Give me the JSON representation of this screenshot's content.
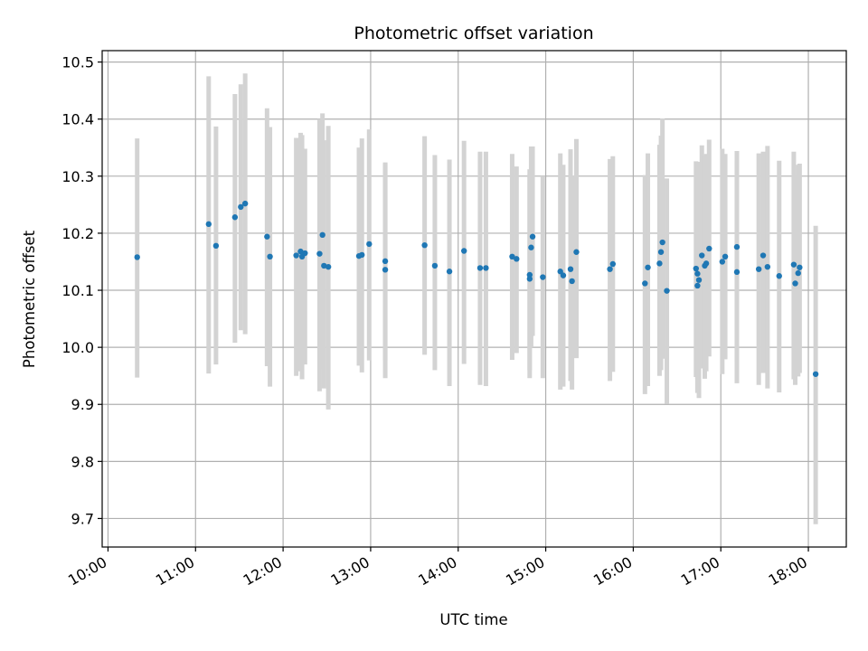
{
  "chart_data": {
    "type": "scatter",
    "title": "Photometric offset variation",
    "xlabel": "UTC time",
    "ylabel": "Photometric offset",
    "xlim": [
      "09:56",
      "18:26"
    ],
    "ylim": [
      9.65,
      10.52
    ],
    "x_ticks": [
      "10:00",
      "11:00",
      "12:00",
      "13:00",
      "14:00",
      "15:00",
      "16:00",
      "17:00",
      "18:00"
    ],
    "y_ticks": [
      9.7,
      9.8,
      9.9,
      10.0,
      10.1,
      10.2,
      10.3,
      10.4,
      10.5
    ],
    "y_tick_labels": [
      "9.7",
      "9.8",
      "9.9",
      "10.0",
      "10.1",
      "10.2",
      "10.3",
      "10.4",
      "10.5"
    ],
    "grid": true,
    "legend": "none",
    "colors": {
      "point": "#1f77b4",
      "errorbar": "#d3d3d3",
      "grid": "#b0b0b0"
    },
    "series": [
      {
        "x": [
          "10:20",
          "11:09",
          "11:14",
          "11:27",
          "11:31",
          "11:34",
          "11:49",
          "11:51",
          "12:09",
          "12:12",
          "12:13",
          "12:15",
          "12:25",
          "12:27",
          "12:28",
          "12:31",
          "12:52",
          "12:54",
          "12:59",
          "13:10",
          "13:10",
          "13:37",
          "13:44",
          "13:54",
          "14:04",
          "14:15",
          "14:19",
          "14:37",
          "14:40",
          "14:49",
          "14:49",
          "14:50",
          "14:51",
          "14:58",
          "15:10",
          "15:12",
          "15:17",
          "15:18",
          "15:21",
          "15:44",
          "15:46",
          "16:08",
          "16:10",
          "16:18",
          "16:19",
          "16:20",
          "16:23",
          "16:43",
          "16:44",
          "16:45",
          "16:44",
          "16:47",
          "16:49",
          "16:50",
          "16:52",
          "17:01",
          "17:03",
          "17:11",
          "17:11",
          "17:26",
          "17:29",
          "17:32",
          "17:40",
          "17:50",
          "17:51",
          "17:53",
          "17:54",
          "18:05"
        ],
        "y": [
          10.158,
          10.216,
          10.178,
          10.228,
          10.246,
          10.252,
          10.194,
          10.159,
          10.161,
          10.168,
          10.159,
          10.165,
          10.164,
          10.197,
          10.143,
          10.141,
          10.16,
          10.162,
          10.181,
          10.151,
          10.136,
          10.179,
          10.143,
          10.133,
          10.169,
          10.139,
          10.139,
          10.159,
          10.155,
          10.12,
          10.127,
          10.175,
          10.194,
          10.123,
          10.133,
          10.126,
          10.137,
          10.116,
          10.167,
          10.137,
          10.146,
          10.112,
          10.14,
          10.147,
          10.167,
          10.184,
          10.099,
          10.138,
          10.129,
          10.118,
          10.108,
          10.161,
          10.143,
          10.147,
          10.173,
          10.15,
          10.159,
          10.132,
          10.176,
          10.137,
          10.161,
          10.141,
          10.125,
          10.145,
          10.112,
          10.13,
          10.14,
          9.953
        ],
        "y_low": [
          9.947,
          9.954,
          9.97,
          10.008,
          10.03,
          10.023,
          9.967,
          9.931,
          9.95,
          9.958,
          9.944,
          9.97,
          9.923,
          9.961,
          9.928,
          9.891,
          9.968,
          9.956,
          9.977,
          9.977,
          9.946,
          9.987,
          9.96,
          9.932,
          9.971,
          9.934,
          9.932,
          9.978,
          9.99,
          9.946,
          9.96,
          10.0,
          10.02,
          9.946,
          9.926,
          9.931,
          9.941,
          9.926,
          9.981,
          9.941,
          9.957,
          9.918,
          9.932,
          9.95,
          9.96,
          9.98,
          9.901,
          9.948,
          9.944,
          9.911,
          9.92,
          9.963,
          9.945,
          9.958,
          9.984,
          9.953,
          9.979,
          9.937,
          9.975,
          9.934,
          9.955,
          9.928,
          9.921,
          9.944,
          9.934,
          9.949,
          9.955,
          9.69
        ],
        "y_high": [
          10.366,
          10.475,
          10.387,
          10.444,
          10.461,
          10.48,
          10.419,
          10.386,
          10.367,
          10.376,
          10.372,
          10.348,
          10.4,
          10.41,
          10.363,
          10.388,
          10.35,
          10.366,
          10.382,
          10.324,
          10.322,
          10.37,
          10.337,
          10.329,
          10.362,
          10.343,
          10.343,
          10.339,
          10.317,
          10.303,
          10.312,
          10.352,
          10.352,
          10.3,
          10.34,
          10.32,
          10.347,
          10.301,
          10.365,
          10.33,
          10.335,
          10.302,
          10.34,
          10.355,
          10.371,
          10.401,
          10.296,
          10.326,
          10.324,
          10.325,
          10.305,
          10.354,
          10.335,
          10.339,
          10.364,
          10.348,
          10.339,
          10.327,
          10.344,
          10.34,
          10.343,
          10.353,
          10.327,
          10.343,
          10.3,
          10.32,
          10.322,
          10.213
        ]
      }
    ]
  }
}
